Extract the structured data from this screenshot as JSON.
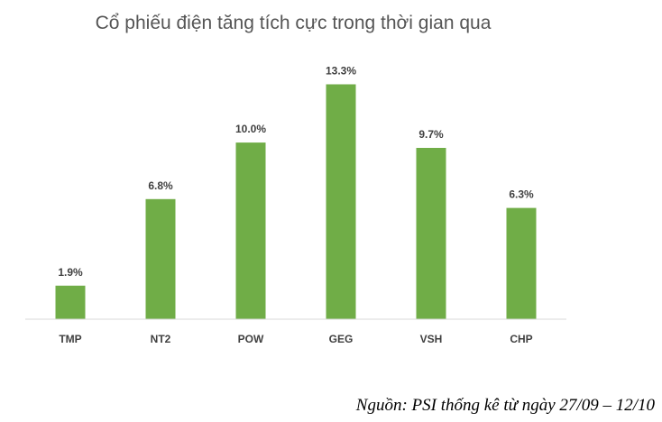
{
  "chart_data": {
    "type": "bar",
    "title": "Cổ phiếu điện tăng tích cực trong thời gian qua",
    "categories": [
      "TMP",
      "NT2",
      "POW",
      "GEG",
      "VSH",
      "CHP"
    ],
    "values": [
      1.9,
      6.8,
      10.0,
      13.3,
      9.7,
      6.3
    ],
    "data_labels": [
      "1.9%",
      "6.8%",
      "10.0%",
      "13.3%",
      "9.7%",
      "6.3%"
    ],
    "unit": "%",
    "ylim": [
      0,
      14.5
    ],
    "grid": false,
    "legend": "none",
    "bar_color": "#70AD47",
    "axis_color": "#D9D9D9",
    "text_color": "#404040"
  },
  "source": "Nguồn: PSI thống kê từ ngày 27/09 – 12/10"
}
